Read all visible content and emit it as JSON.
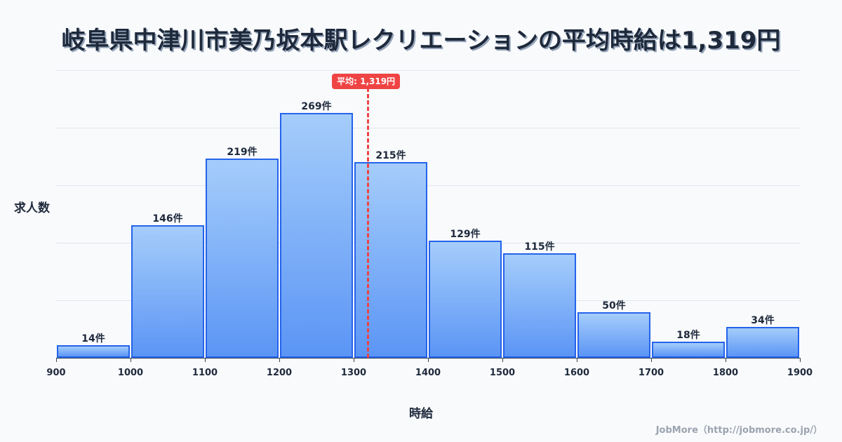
{
  "title": "岐阜県中津川市美乃坂本駅レクリエーションの平均時給は1,319円",
  "y_axis_label": "求人数",
  "x_axis_label": "時給",
  "average_badge": "平均: 1,319円",
  "credit": "JobMore（http://jobmore.co.jp/）",
  "colors": {
    "bar_fill_top": "#a5cdfb",
    "bar_fill_bottom": "#5b95f5",
    "bar_border": "#2563eb",
    "average_line": "#ef4444",
    "text": "#1e293b"
  },
  "chart_data": {
    "type": "bar",
    "title": "岐阜県中津川市美乃坂本駅レクリエーションの平均時給は1,319円",
    "xlabel": "時給",
    "ylabel": "求人数",
    "categories": [
      "900-1000",
      "1000-1100",
      "1100-1200",
      "1200-1300",
      "1300-1400",
      "1400-1500",
      "1500-1600",
      "1600-1700",
      "1700-1800",
      "1800-1900"
    ],
    "bin_edges": [
      900,
      1000,
      1100,
      1200,
      1300,
      1400,
      1500,
      1600,
      1700,
      1800,
      1900
    ],
    "values": [
      14,
      146,
      219,
      269,
      215,
      129,
      115,
      50,
      18,
      34
    ],
    "value_labels": [
      "14件",
      "146件",
      "219件",
      "269件",
      "215件",
      "129件",
      "115件",
      "50件",
      "18件",
      "34件"
    ],
    "x_tick_labels": [
      "900",
      "1000",
      "1100",
      "1200",
      "1300",
      "1400",
      "1500",
      "1600",
      "1700",
      "1800",
      "1900"
    ],
    "xlim": [
      900,
      1900
    ],
    "grid": true,
    "annotations": [
      {
        "type": "vline",
        "x": 1319,
        "label": "平均: 1,319円"
      }
    ]
  }
}
